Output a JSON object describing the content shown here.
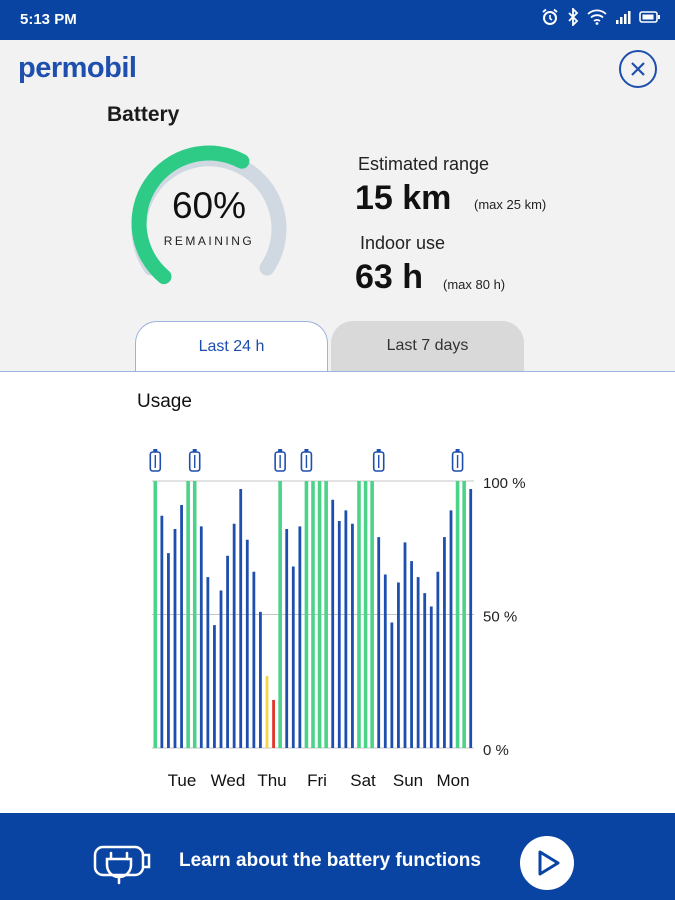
{
  "status_bar": {
    "time": "5:13 PM"
  },
  "header": {
    "logo": "permobil"
  },
  "battery": {
    "title": "Battery",
    "percent_text": "60%",
    "percent_value": 60,
    "remaining_label": "REMAINING",
    "estimated_range_label": "Estimated range",
    "estimated_range_value": "15 km",
    "estimated_range_max": "(max 25 km)",
    "indoor_use_label": "Indoor use",
    "indoor_use_value": "63 h",
    "indoor_use_max": "(max 80 h)"
  },
  "tabs": [
    {
      "label": "Last 24 h",
      "active": true
    },
    {
      "label": "Last 7 days",
      "active": false
    }
  ],
  "usage": {
    "title": "Usage"
  },
  "chart_data": {
    "type": "bar",
    "categories": [
      "Tue",
      "Wed",
      "Thu",
      "Fri",
      "Sat",
      "Sun",
      "Mon"
    ],
    "yticks": [
      "100 %",
      "50 %",
      "0 %"
    ],
    "ylim": [
      0,
      100
    ],
    "grid": true,
    "colors": {
      "charging": "#4cd38a",
      "usage": "#1f4fae",
      "low": "#f4d54c",
      "critical": "#e0342b",
      "track": "#d0d8e2"
    },
    "bars": [
      {
        "value": 100,
        "status": "charging"
      },
      {
        "value": 87,
        "status": "usage"
      },
      {
        "value": 73,
        "status": "usage"
      },
      {
        "value": 82,
        "status": "usage"
      },
      {
        "value": 91,
        "status": "usage"
      },
      {
        "value": 100,
        "status": "charging"
      },
      {
        "value": 100,
        "status": "charging"
      },
      {
        "value": 83,
        "status": "usage"
      },
      {
        "value": 64,
        "status": "usage"
      },
      {
        "value": 46,
        "status": "usage"
      },
      {
        "value": 59,
        "status": "usage"
      },
      {
        "value": 72,
        "status": "usage"
      },
      {
        "value": 84,
        "status": "usage"
      },
      {
        "value": 97,
        "status": "usage"
      },
      {
        "value": 78,
        "status": "usage"
      },
      {
        "value": 66,
        "status": "usage"
      },
      {
        "value": 51,
        "status": "usage"
      },
      {
        "value": 27,
        "status": "low"
      },
      {
        "value": 18,
        "status": "critical"
      },
      {
        "value": 100,
        "status": "charging"
      },
      {
        "value": 82,
        "status": "usage"
      },
      {
        "value": 68,
        "status": "usage"
      },
      {
        "value": 83,
        "status": "usage"
      },
      {
        "value": 100,
        "status": "charging"
      },
      {
        "value": 100,
        "status": "charging"
      },
      {
        "value": 100,
        "status": "charging"
      },
      {
        "value": 100,
        "status": "charging"
      },
      {
        "value": 93,
        "status": "usage"
      },
      {
        "value": 85,
        "status": "usage"
      },
      {
        "value": 89,
        "status": "usage"
      },
      {
        "value": 84,
        "status": "usage"
      },
      {
        "value": 100,
        "status": "charging"
      },
      {
        "value": 100,
        "status": "charging"
      },
      {
        "value": 100,
        "status": "charging"
      },
      {
        "value": 79,
        "status": "usage"
      },
      {
        "value": 65,
        "status": "usage"
      },
      {
        "value": 47,
        "status": "usage"
      },
      {
        "value": 62,
        "status": "usage"
      },
      {
        "value": 77,
        "status": "usage"
      },
      {
        "value": 70,
        "status": "usage"
      },
      {
        "value": 64,
        "status": "usage"
      },
      {
        "value": 58,
        "status": "usage"
      },
      {
        "value": 53,
        "status": "usage"
      },
      {
        "value": 66,
        "status": "usage"
      },
      {
        "value": 79,
        "status": "usage"
      },
      {
        "value": 89,
        "status": "usage"
      },
      {
        "value": 100,
        "status": "charging"
      },
      {
        "value": 100,
        "status": "charging"
      },
      {
        "value": 97,
        "status": "usage"
      }
    ],
    "charge_markers": [
      0,
      6,
      19,
      23,
      34,
      46
    ]
  },
  "footer": {
    "learn_label": "Learn about the battery functions"
  },
  "icons": {
    "close": "close-icon",
    "plug": "plug-icon",
    "play": "play-icon",
    "battery_marker": "battery-icon",
    "status": [
      "alarm-icon",
      "bluetooth-icon",
      "wifi-icon",
      "signal-icon",
      "battery-status-icon"
    ]
  }
}
